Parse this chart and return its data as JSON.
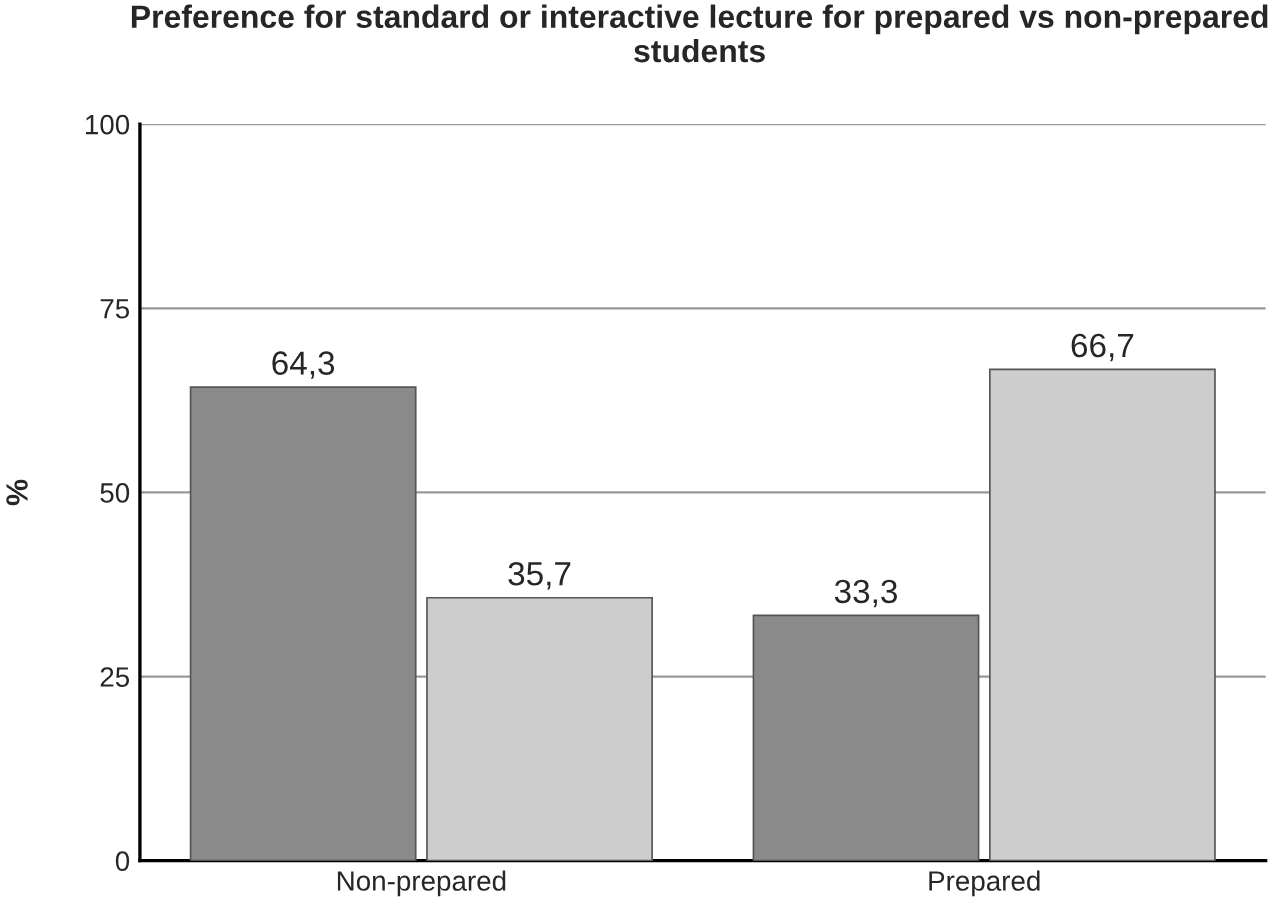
{
  "chart_data": {
    "type": "bar",
    "title": "Preference for standard or interactive lecture for prepared vs non-prepared students",
    "ylabel": "%",
    "categories": [
      "Non-prepared",
      "Prepared"
    ],
    "series": [
      {
        "color": "#8a8a8a",
        "values": [
          64.3,
          33.3
        ],
        "value_labels": [
          "64,3",
          "33,3"
        ]
      },
      {
        "color": "#cdcdcd",
        "values": [
          35.7,
          66.7
        ],
        "value_labels": [
          "35,7",
          "66,7"
        ]
      }
    ],
    "ylim": [
      0,
      100
    ],
    "yticks": [
      0,
      25,
      50,
      75,
      100
    ],
    "grid": "y",
    "legend": false
  }
}
